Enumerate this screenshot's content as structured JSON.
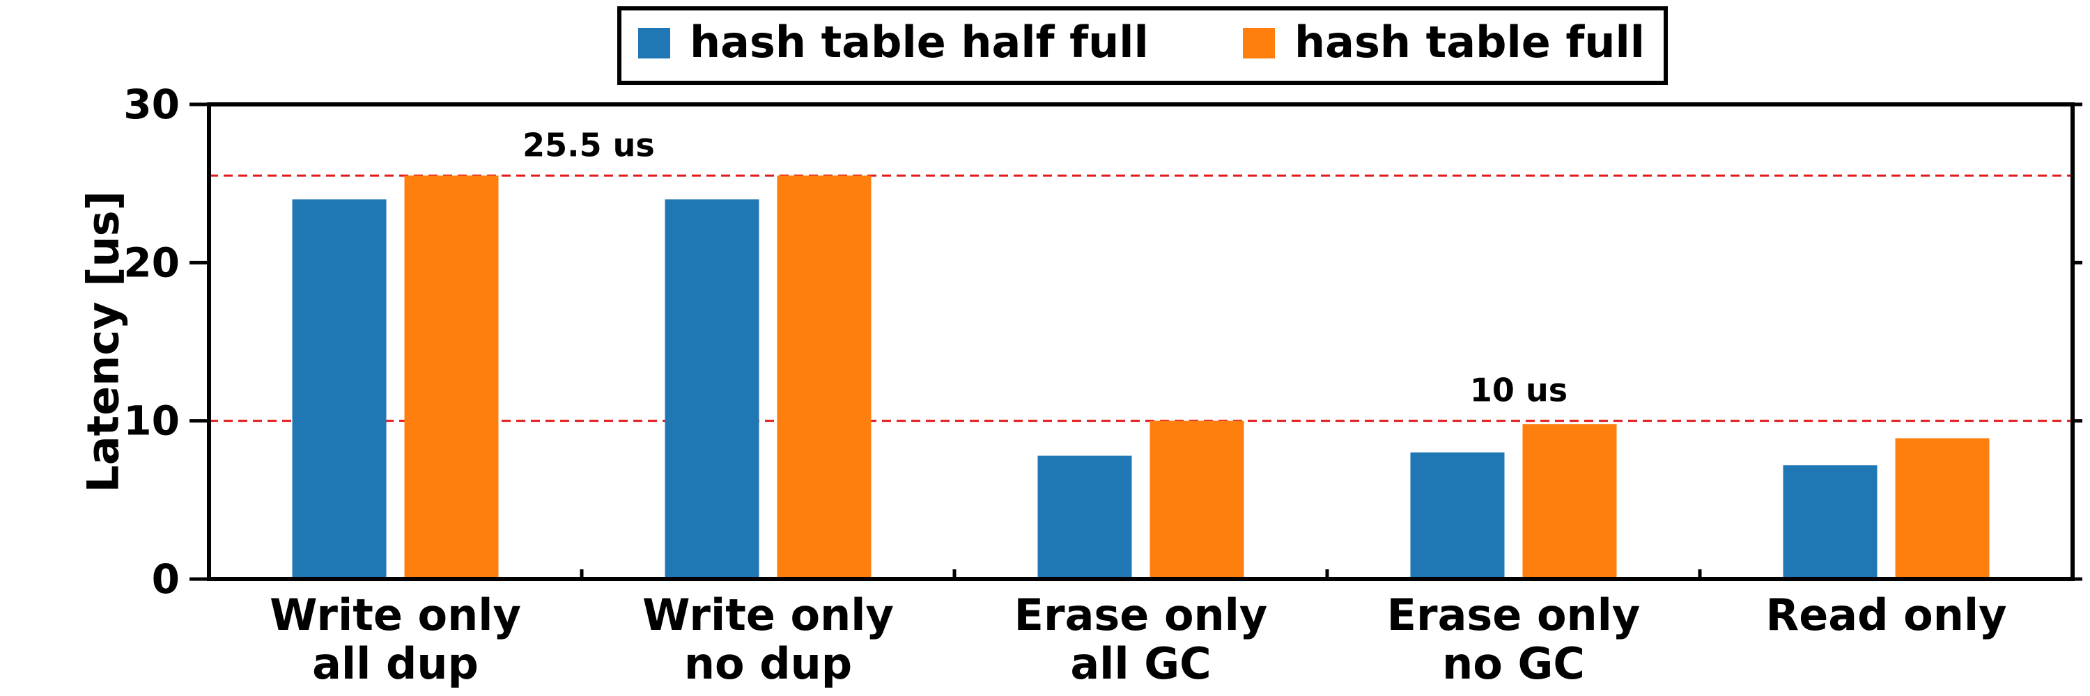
{
  "chart_data": {
    "type": "bar",
    "categories": [
      [
        "Write only",
        "all dup"
      ],
      [
        "Write only",
        "no dup"
      ],
      [
        "Erase only",
        "all GC"
      ],
      [
        "Erase only",
        "no GC"
      ],
      [
        "Read only"
      ]
    ],
    "series": [
      {
        "name": "hash table half full",
        "color": "#1f77b4",
        "values": [
          24.0,
          24.0,
          7.8,
          8.0,
          7.2
        ]
      },
      {
        "name": "hash table full",
        "color": "#ff7f0e",
        "values": [
          25.5,
          25.5,
          10.0,
          9.8,
          8.9
        ]
      }
    ],
    "ylabel": "Latency [us]",
    "xlabel": "",
    "ylim": [
      0,
      30
    ],
    "yticks": [
      0,
      10,
      20,
      30
    ],
    "grid": false,
    "legend_position": "top-center",
    "reference_lines": [
      {
        "value": 25.5,
        "label": "25.5 us",
        "color": "#e31a1c"
      },
      {
        "value": 10,
        "label": "10 us",
        "color": "#e31a1c"
      }
    ]
  }
}
